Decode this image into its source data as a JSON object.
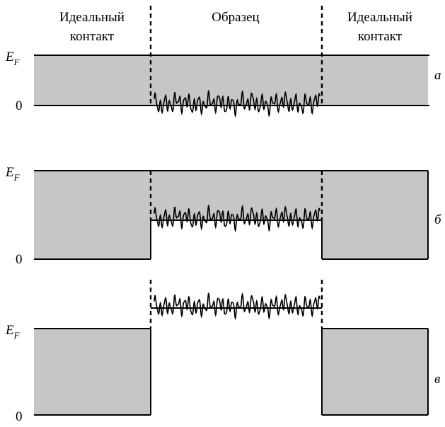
{
  "header": {
    "left_contact": [
      "Идеальный",
      "контакт"
    ],
    "sample": "Образец",
    "right_contact": [
      "Идеальный",
      "контакт"
    ]
  },
  "axis_labels": {
    "fermi": "E",
    "fermi_sub": "F",
    "zero": "0"
  },
  "panels": [
    {
      "id": "a",
      "letter": "а"
    },
    {
      "id": "b",
      "letter": "б"
    },
    {
      "id": "c",
      "letter": "в"
    }
  ],
  "colors": {
    "band_fill": "#c6c6c6",
    "stroke": "#000000"
  }
}
